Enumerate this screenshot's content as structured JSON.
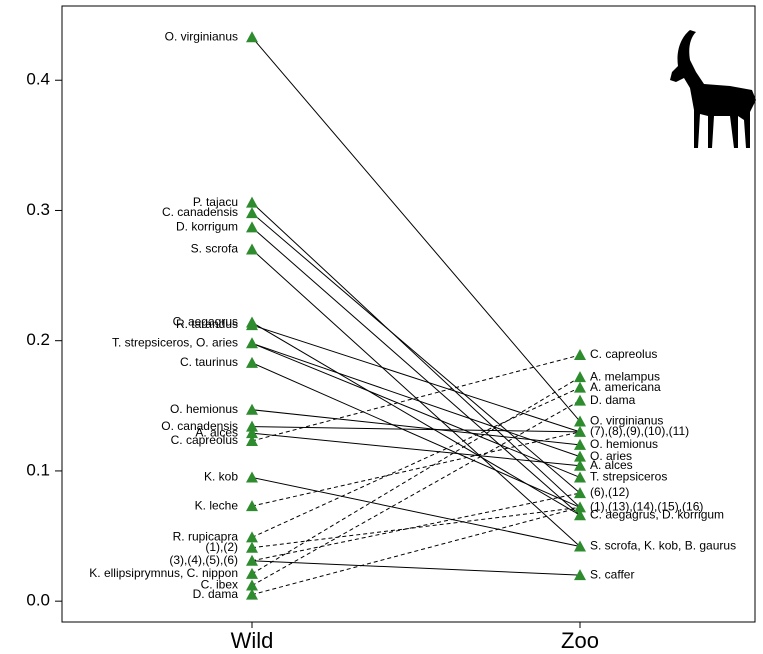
{
  "chart_data": {
    "type": "slope",
    "categories": [
      "Wild",
      "Zoo"
    ],
    "ylim": [
      -0.016,
      0.457
    ],
    "yticks": [
      {
        "value": 0,
        "label": "0.0"
      },
      0.1,
      0.2,
      0.3,
      0.4
    ],
    "color": "#2e8b2e",
    "wild": {
      "labels": [
        "O. virginianus",
        "P. tajacu",
        "C. canadensis",
        "D. korrigum",
        "S. scrofa",
        "C. aegagrus",
        "R. tarandus",
        "T. strepsiceros, O. aries",
        "C. taurinus",
        "O. hemionus",
        "O. canadensis",
        "A. alces",
        "C. capreolus",
        "K. kob",
        "K. leche",
        "R. rupicapra",
        "(1),(2)",
        "(3),(4),(5),(6)",
        "K. ellipsiprymnus, C. nippon",
        "C. ibex",
        "D. dama"
      ],
      "values": [
        0.433,
        0.306,
        0.298,
        0.287,
        0.27,
        0.214,
        0.212,
        0.198,
        0.183,
        0.147,
        0.134,
        0.129,
        0.123,
        0.095,
        0.073,
        0.049,
        0.041,
        0.031,
        0.021,
        0.012,
        0.005
      ]
    },
    "zoo": {
      "labels": [
        "C. capreolus",
        "A. melampus",
        "A. americana",
        "D. dama",
        "O. virginianus",
        "(7),(8),(9),(10),(11)",
        "O. hemionus",
        "O. aries",
        "A. alces",
        "T. strepsiceros",
        "(6),(12)",
        "(1),(13),(14),(15),(16)",
        "C. aegagrus, D. korrigum",
        "S. scrofa, K. kob, B. gaurus",
        "S. caffer"
      ],
      "values": [
        0.189,
        0.172,
        0.164,
        0.154,
        0.138,
        0.13,
        0.12,
        0.111,
        0.104,
        0.095,
        0.083,
        0.072,
        0.066,
        0.042,
        0.02
      ]
    },
    "links": [
      [
        0,
        4,
        false
      ],
      [
        1,
        11,
        false
      ],
      [
        2,
        10,
        false
      ],
      [
        3,
        12,
        false
      ],
      [
        4,
        13,
        false
      ],
      [
        5,
        12,
        false
      ],
      [
        6,
        5,
        false
      ],
      [
        7,
        7,
        false
      ],
      [
        7,
        9,
        false
      ],
      [
        8,
        11,
        false
      ],
      [
        9,
        6,
        false
      ],
      [
        10,
        5,
        false
      ],
      [
        11,
        8,
        false
      ],
      [
        12,
        0,
        true
      ],
      [
        13,
        13,
        false
      ],
      [
        14,
        5,
        true
      ],
      [
        15,
        2,
        true
      ],
      [
        16,
        11,
        true
      ],
      [
        17,
        10,
        true
      ],
      [
        17,
        14,
        false
      ],
      [
        18,
        1,
        true
      ],
      [
        19,
        3,
        true
      ],
      [
        20,
        11,
        true
      ]
    ]
  }
}
